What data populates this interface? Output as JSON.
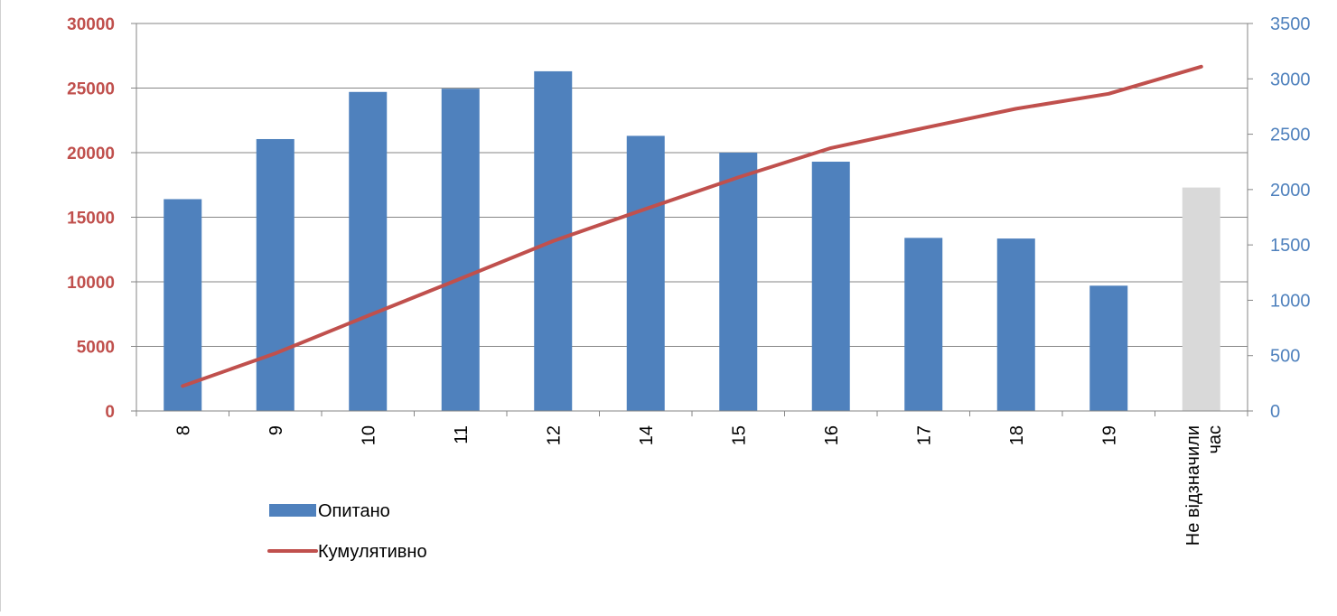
{
  "chart_data": {
    "type": "bar",
    "categories": [
      "8",
      "9",
      "10",
      "11",
      "12",
      "14",
      "15",
      "16",
      "17",
      "18",
      "19",
      "Не відзначили час"
    ],
    "series": [
      {
        "name": "Опитано",
        "type": "bar",
        "axis": "left",
        "color": "#4f81bd",
        "values": [
          16400,
          21050,
          24700,
          24950,
          26300,
          21300,
          20000,
          19300,
          13400,
          13350,
          9700,
          null
        ]
      },
      {
        "name": "Кумулятивно",
        "type": "line",
        "axis": "right",
        "color": "#c0504d",
        "values": [
          225,
          520,
          860,
          1195,
          1535,
          1825,
          2110,
          2375,
          2555,
          2730,
          2865,
          3110
        ]
      }
    ],
    "highlight": {
      "category": "Не відзначили час",
      "value": 17300,
      "color": "#d9d9d9"
    },
    "y_left": {
      "min": 0,
      "max": 30000,
      "ticks": [
        "0",
        "5000",
        "10000",
        "15000",
        "20000",
        "25000",
        "30000"
      ],
      "tick_color": "#c0504d"
    },
    "y_right": {
      "min": 0,
      "max": 3500,
      "ticks": [
        "0",
        "500",
        "1000",
        "1500",
        "2000",
        "2500",
        "3000",
        "3500"
      ],
      "tick_color": "#4f81bd"
    },
    "grid": true,
    "legend_position": "bottom-left"
  }
}
